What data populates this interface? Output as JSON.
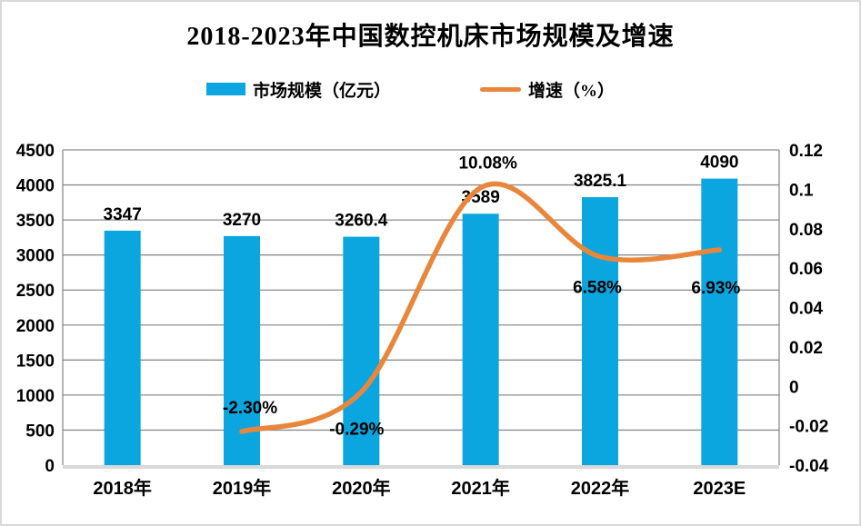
{
  "title": "2018-2023年中国数控机床市场规模及增速",
  "legend": [
    {
      "label": "市场规模（亿元）",
      "type": "bar",
      "color": "#0BA6E0"
    },
    {
      "label": "增速（%）",
      "type": "line",
      "color": "#E8873B"
    }
  ],
  "colors": {
    "bar": "#0BA6E0",
    "line": "#E8873B",
    "grid": "#8C8C8C",
    "x_axis_line": "#D9D9D9",
    "text": "#000000",
    "canvas_border": "#D9D9D9"
  },
  "chart_data": {
    "type": "bar+line",
    "title": "2018-2023年中国数控机床市场规模及增速",
    "categories": [
      "2018年",
      "2019年",
      "2020年",
      "2021年",
      "2022年",
      "2023E"
    ],
    "series": [
      {
        "name": "市场规模（亿元）",
        "type": "bar",
        "axis": "left",
        "color": "#0BA6E0",
        "values": [
          3347,
          3270,
          3260.4,
          3589,
          3825.1,
          4090
        ],
        "labels": [
          "3347",
          "3270",
          "3260.4",
          "3589",
          "3825.1",
          "4090"
        ]
      },
      {
        "name": "增速（%）",
        "type": "line",
        "axis": "right",
        "color": "#E8873B",
        "x_indices": [
          1,
          2,
          3,
          4,
          5
        ],
        "values": [
          -0.023,
          -0.0029,
          0.1008,
          0.0658,
          0.0693
        ],
        "labels": [
          "-2.30%",
          "-0.29%",
          "10.08%",
          "6.58%",
          "6.93%"
        ],
        "label_offsets": [
          [
            9,
            -20
          ],
          [
            -5,
            47
          ],
          [
            8,
            -21
          ],
          [
            -3,
            40
          ],
          [
            -4,
            48
          ]
        ]
      }
    ],
    "left_axis": {
      "min": 0,
      "max": 4500,
      "step": 500,
      "ticks": [
        "4500",
        "4000",
        "3500",
        "3000",
        "2500",
        "2000",
        "1500",
        "1000",
        "500",
        "0"
      ]
    },
    "right_axis": {
      "min": -0.04,
      "max": 0.12,
      "step": 0.02,
      "ticks": [
        "0.12",
        "0.1",
        "0.08",
        "0.06",
        "0.04",
        "0.02",
        "0",
        "-0.02",
        "-0.04"
      ]
    },
    "grid": "horizontal",
    "legend_position": "top",
    "smooth_line": true
  }
}
